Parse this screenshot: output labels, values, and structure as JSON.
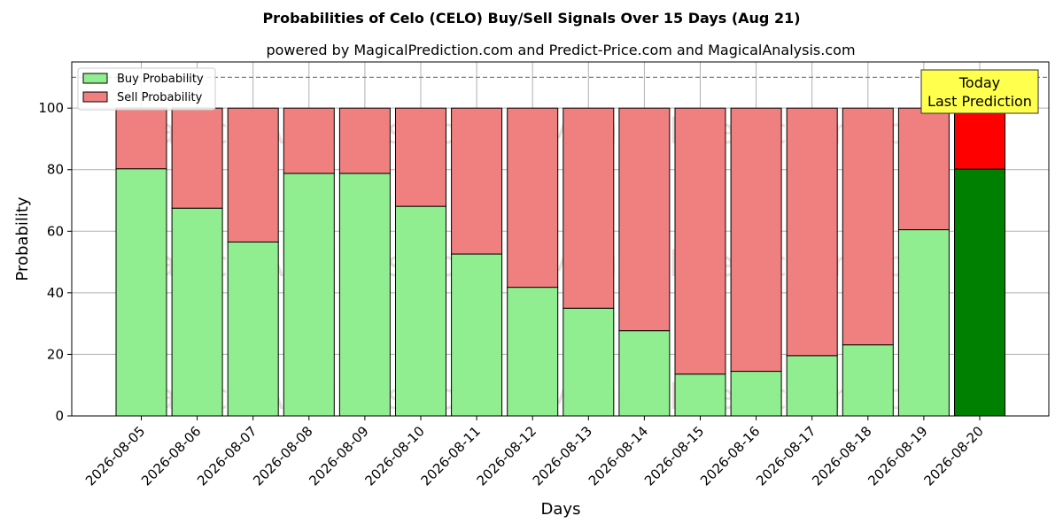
{
  "chart_data": {
    "type": "bar",
    "stacked": true,
    "title": "Probabilities of Celo (CELO) Buy/Sell Signals Over 15 Days (Aug 21)",
    "subtitle": "powered by MagicalPrediction.com and Predict-Price.com and MagicalAnalysis.com",
    "xlabel": "Days",
    "ylabel": "Probability",
    "ylim": [
      0,
      115
    ],
    "yticks": [
      0,
      20,
      40,
      60,
      80,
      100
    ],
    "grid": true,
    "legend_placement": "top-left",
    "categories": [
      "2026-08-05",
      "2026-08-06",
      "2026-08-07",
      "2026-08-08",
      "2026-08-09",
      "2026-08-10",
      "2026-08-11",
      "2026-08-12",
      "2026-08-13",
      "2026-08-14",
      "2026-08-15",
      "2026-08-16",
      "2026-08-17",
      "2026-08-18",
      "2026-08-19",
      "2026-08-20"
    ],
    "series": [
      {
        "name": "Buy Probability",
        "color": "#90ee90",
        "values": [
          80.3,
          67.5,
          56.5,
          78.8,
          78.8,
          68.1,
          52.6,
          41.8,
          35.0,
          27.7,
          13.6,
          14.5,
          19.6,
          23.1,
          60.5,
          80.2
        ]
      },
      {
        "name": "Sell Probability",
        "color": "#f08080",
        "values": [
          19.7,
          32.5,
          43.5,
          21.2,
          21.2,
          31.9,
          47.4,
          58.2,
          65.0,
          72.3,
          86.4,
          85.5,
          80.4,
          76.9,
          39.5,
          19.8
        ]
      }
    ],
    "highlight": {
      "index": 15,
      "buy_color": "#008000",
      "sell_color": "#ff0000"
    },
    "reference_line": {
      "y": 110,
      "style": "dashed",
      "color": "#808080"
    },
    "annotation": {
      "lines": [
        "Today",
        "Last Prediction"
      ],
      "background": "#ffff4d"
    },
    "watermarks": [
      "MagicalAnalysis.com",
      "MagicalPrediction.com"
    ]
  }
}
